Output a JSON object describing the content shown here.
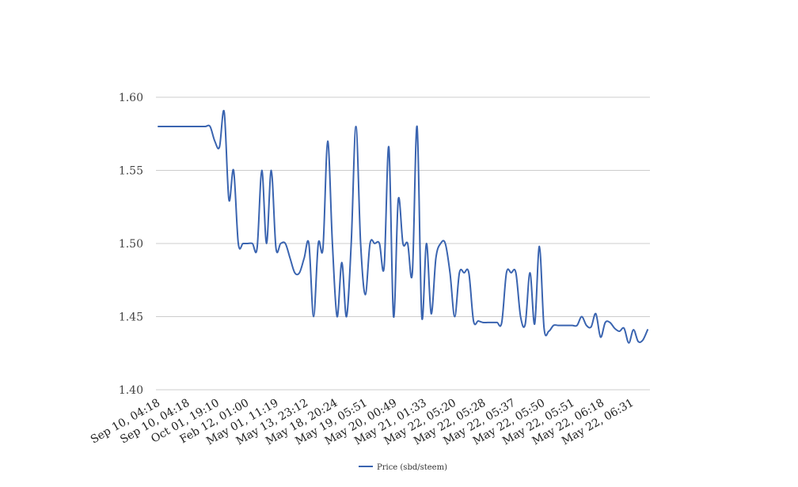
{
  "chart_data": {
    "type": "line",
    "title": "",
    "xlabel": "",
    "ylabel": "",
    "ylim": [
      1.4,
      1.6
    ],
    "yticks": [
      "1.60",
      "1.55",
      "1.50",
      "1.45",
      "1.40"
    ],
    "x_tick_labels": [
      "Sep 10, 04:18",
      "Sep 10, 04:18",
      "Oct 01, 19:10",
      "Feb 12, 01:00",
      "May 01, 11:19",
      "May 13, 23:12",
      "May 18, 20:24",
      "May 19, 05:51",
      "May 20, 00:49",
      "May 21, 01:33",
      "May 22, 05:20",
      "May 22, 05:28",
      "May 22, 05:37",
      "May 22, 05:50",
      "May 22, 05:51",
      "May 22, 06:18",
      "May 22, 06:31"
    ],
    "grid": true,
    "legend": "bottom-center",
    "series": [
      {
        "name": "Price (sbd/steem)",
        "color": "#3a64b0",
        "values": [
          1.58,
          1.58,
          1.58,
          1.58,
          1.58,
          1.58,
          1.58,
          1.58,
          1.58,
          1.58,
          1.58,
          1.58,
          1.57,
          1.566,
          1.59,
          1.53,
          1.55,
          1.5,
          1.5,
          1.5,
          1.5,
          1.497,
          1.55,
          1.5,
          1.55,
          1.497,
          1.5,
          1.5,
          1.49,
          1.48,
          1.48,
          1.49,
          1.5,
          1.45,
          1.5,
          1.497,
          1.57,
          1.5,
          1.45,
          1.487,
          1.45,
          1.5,
          1.58,
          1.5,
          1.465,
          1.5,
          1.5,
          1.5,
          1.484,
          1.566,
          1.45,
          1.53,
          1.5,
          1.5,
          1.48,
          1.58,
          1.45,
          1.5,
          1.452,
          1.49,
          1.5,
          1.5,
          1.48,
          1.45,
          1.48,
          1.48,
          1.48,
          1.447,
          1.447,
          1.446,
          1.446,
          1.446,
          1.446,
          1.446,
          1.48,
          1.48,
          1.48,
          1.45,
          1.445,
          1.48,
          1.445,
          1.498,
          1.442,
          1.44,
          1.444,
          1.444,
          1.444,
          1.444,
          1.444,
          1.444,
          1.45,
          1.444,
          1.443,
          1.452,
          1.436,
          1.446,
          1.446,
          1.442,
          1.44,
          1.442,
          1.432,
          1.441,
          1.433,
          1.434,
          1.441
        ]
      }
    ]
  }
}
